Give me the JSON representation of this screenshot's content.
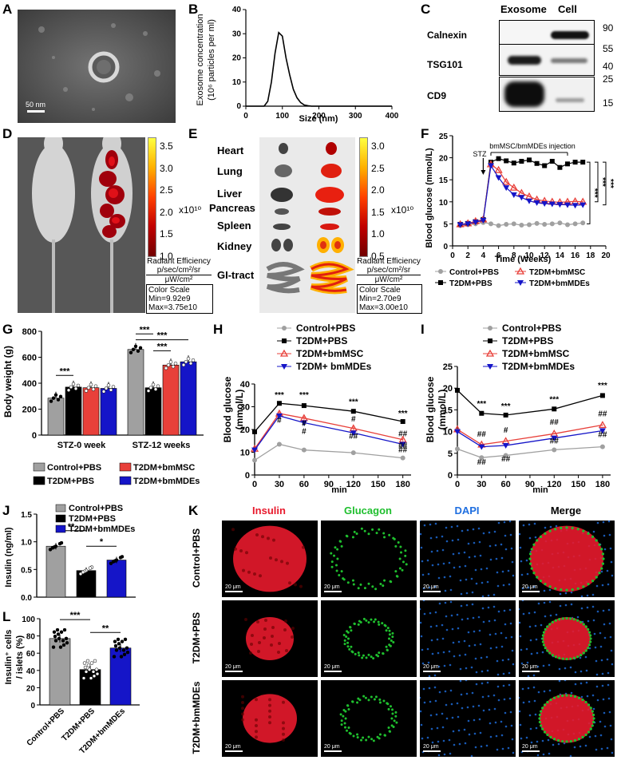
{
  "panel_letters": [
    "A",
    "B",
    "C",
    "D",
    "E",
    "F",
    "G",
    "H",
    "I",
    "J",
    "K",
    "L"
  ],
  "A": {
    "scalebar": "50 nm"
  },
  "B": {
    "xlabel": "Size (nm)",
    "ylabel_line1": "Exosome concentration",
    "ylabel_line2": "(10⁶ particles per ml)"
  },
  "C": {
    "col_exosome": "Exosome",
    "col_cell": "Cell",
    "rows": [
      "Calnexin",
      "TSG101",
      "CD9"
    ],
    "mw": [
      "90",
      "55",
      "40",
      "25",
      "15"
    ]
  },
  "D": {
    "colorbar_ticks": [
      "3.5",
      "3.0",
      "2.5",
      "2.0",
      "1.5",
      "1.0"
    ],
    "exponent": "x10¹⁰",
    "unit_title": "Radiant Efficiency",
    "unit_line1": "p/sec/cm²/sr",
    "unit_line2": "μW/cm²",
    "scale_title": "Color Scale",
    "min": "Min=9.92e9",
    "max": "Max=3.75e10"
  },
  "E": {
    "organs": [
      "Heart",
      "Lung",
      "Liver",
      "Pancreas",
      "Spleen",
      "Kidney",
      "GI-tract"
    ],
    "colorbar_ticks": [
      "3.0",
      "2.5",
      "2.0",
      "1.5",
      "1.0",
      "0.5"
    ],
    "exponent": "x10¹⁰",
    "unit_title": "Radiant Efficiency",
    "unit_line1": "p/sec/cm²/sr",
    "unit_line2": "μW/cm²",
    "scale_title": "Color Scale",
    "min": "Min=2.70e9",
    "max": "Max=3.00e10"
  },
  "F": {
    "ylabel": "Blood glucose (mmol/L)",
    "xlabel": "Time (Weeks)",
    "stz": "STZ",
    "injection": "bmMSC/bmMDEs injection",
    "sig": [
      "***",
      "***",
      "***"
    ],
    "legend": [
      "Control+PBS",
      "T2DM+bmMSC",
      "T2DM+PBS",
      "T2DM+bmMDEs"
    ]
  },
  "G": {
    "ylabel": "Body weight (g)",
    "groups": [
      "STZ-0 week",
      "STZ-12 weeks"
    ],
    "sig": [
      "***",
      "***",
      "***",
      "***"
    ],
    "legend": [
      "Control+PBS",
      "T2DM+bmMSC",
      "T2DM+PBS",
      "T2DM+bmMDEs"
    ]
  },
  "H": {
    "ylabel_line1": "Blood glucose",
    "ylabel_line2": "(mmol/L)",
    "xlabel": "min",
    "legend": [
      "Control+PBS",
      "T2DM+PBS",
      "T2DM+bmMSC",
      "T2DM+ bmMDEs"
    ]
  },
  "I": {
    "ylabel_line1": "Blood glucose",
    "ylabel_line2": "(mmol/L)",
    "xlabel": "min",
    "legend": [
      "Control+PBS",
      "T2DM+PBS",
      "T2DM+bmMSC",
      "T2DM+bmMDEs"
    ]
  },
  "J": {
    "ylabel": "Insulin (ng/ml)",
    "sig": [
      "**",
      "*"
    ],
    "legend": [
      "Control+PBS",
      "T2DM+PBS",
      "T2DM+bmMDEs"
    ]
  },
  "K": {
    "columns": [
      "Insulin",
      "Glucagon",
      "DAPI",
      "Merge"
    ],
    "rows": [
      "Control+PBS",
      "T2DM+PBS",
      "T2DM+bmMDEs"
    ],
    "scalebar": "20 μm",
    "colors": {
      "insulin": "#e8192c",
      "glucagon": "#1fbf2e",
      "dapi": "#1f6fe0"
    }
  },
  "L": {
    "ylabel_line1": "Insulin⁺ cells",
    "ylabel_line2": "/ islets (%)",
    "categories": [
      "Control+PBS",
      "T2DM+PBS",
      "T2DM+bmMDEs"
    ],
    "sig": [
      "***",
      "**"
    ]
  },
  "colors": {
    "control": "#a0a0a0",
    "t2dm": "#000000",
    "bmmsc": "#e8403a",
    "bmmdes": "#1515c8"
  },
  "chart_data": [
    {
      "panel": "B",
      "type": "line",
      "xlabel": "Size (nm)",
      "ylabel": "Exosome concentration (10⁶ particles per ml)",
      "xlim": [
        0,
        400
      ],
      "ylim": [
        0,
        40
      ],
      "xticks": [
        0,
        100,
        200,
        300,
        400
      ],
      "yticks": [
        0,
        10,
        20,
        30,
        40
      ],
      "x": [
        0,
        50,
        60,
        70,
        80,
        90,
        100,
        110,
        120,
        130,
        140,
        150,
        160,
        170,
        180,
        200,
        250,
        300,
        400
      ],
      "y": [
        0,
        0,
        2,
        10,
        22,
        30.5,
        29,
        20,
        13,
        7,
        3.5,
        1.5,
        0.5,
        0.2,
        0,
        0,
        0,
        0,
        0
      ]
    },
    {
      "panel": "F",
      "type": "line",
      "xlabel": "Time (Weeks)",
      "ylabel": "Blood glucose (mmol/L)",
      "xlim": [
        0,
        20
      ],
      "ylim": [
        0,
        25
      ],
      "xticks": [
        0,
        2,
        4,
        6,
        8,
        10,
        12,
        14,
        16,
        18,
        20
      ],
      "yticks": [
        0,
        5,
        10,
        15,
        20,
        25
      ],
      "x": [
        1,
        2,
        3,
        4,
        5,
        6,
        7,
        8,
        9,
        10,
        11,
        12,
        13,
        14,
        15,
        16,
        17
      ],
      "series": [
        {
          "name": "Control+PBS",
          "values": [
            4.6,
            4.8,
            5.0,
            5.3,
            5.0,
            4.6,
            4.9,
            5.0,
            4.7,
            4.8,
            5.1,
            4.9,
            5.0,
            5.2,
            4.8,
            5.0,
            5.2
          ]
        },
        {
          "name": "T2DM+PBS",
          "values": [
            4.9,
            5.1,
            5.5,
            6.0,
            19.0,
            19.8,
            19.3,
            18.8,
            19.2,
            19.5,
            18.7,
            18.2,
            19.2,
            17.8,
            18.6,
            19.0,
            19.0
          ]
        },
        {
          "name": "T2DM+bmMSC",
          "values": [
            4.9,
            5.1,
            5.6,
            6.0,
            18.5,
            17.2,
            14.5,
            13.2,
            12.0,
            11.2,
            10.5,
            10.2,
            10.0,
            9.9,
            10.0,
            10.1,
            10.0
          ]
        },
        {
          "name": "T2DM+bmMDEs",
          "values": [
            4.8,
            5.0,
            5.4,
            5.8,
            18.2,
            15.5,
            13.2,
            11.6,
            11.0,
            10.2,
            9.8,
            9.6,
            9.5,
            9.4,
            9.3,
            9.2,
            9.3
          ]
        }
      ]
    },
    {
      "panel": "G",
      "type": "bar",
      "ylabel": "Body weight (g)",
      "ylim": [
        0,
        800
      ],
      "yticks": [
        0,
        200,
        400,
        600,
        800
      ],
      "categories": [
        "STZ-0 week",
        "STZ-12 weeks"
      ],
      "series": [
        {
          "name": "Control+PBS",
          "values": [
            285,
            660
          ]
        },
        {
          "name": "T2DM+PBS",
          "values": [
            370,
            365
          ]
        },
        {
          "name": "T2DM+bmMSC",
          "values": [
            365,
            540
          ]
        },
        {
          "name": "T2DM+bmMDEs",
          "values": [
            360,
            565
          ]
        }
      ]
    },
    {
      "panel": "H",
      "type": "line",
      "xlabel": "min",
      "ylabel": "Blood glucose (mmol/L)",
      "xlim": [
        0,
        190
      ],
      "ylim": [
        0,
        40
      ],
      "xticks": [
        0,
        30,
        60,
        90,
        120,
        150,
        180
      ],
      "yticks": [
        0,
        10,
        20,
        30,
        40
      ],
      "x": [
        0,
        30,
        60,
        120,
        180
      ],
      "series": [
        {
          "name": "Control+PBS",
          "values": [
            6.5,
            13.5,
            11.0,
            9.8,
            7.5
          ]
        },
        {
          "name": "T2DM+PBS",
          "values": [
            19.0,
            31.5,
            30.5,
            28.0,
            23.5
          ]
        },
        {
          "name": "T2DM+bmMSC",
          "values": [
            11.5,
            27.0,
            25.0,
            20.5,
            15.5
          ]
        },
        {
          "name": "T2DM+ bmMDEs",
          "values": [
            11.0,
            26.0,
            23.0,
            18.5,
            13.5
          ]
        }
      ],
      "annotations": [
        "***",
        "***",
        "***",
        "***",
        "#",
        "#",
        "#",
        "##",
        "##",
        "#",
        "##",
        "##"
      ]
    },
    {
      "panel": "I",
      "type": "line",
      "xlabel": "min",
      "ylabel": "Blood glucose (mmol/L)",
      "xlim": [
        0,
        190
      ],
      "ylim": [
        0,
        25
      ],
      "xticks": [
        0,
        30,
        60,
        90,
        120,
        150,
        180
      ],
      "yticks": [
        0,
        5,
        10,
        15,
        20,
        25
      ],
      "x": [
        0,
        30,
        60,
        120,
        180
      ],
      "series": [
        {
          "name": "Control+PBS",
          "values": [
            6.0,
            4.0,
            4.5,
            5.8,
            6.5
          ]
        },
        {
          "name": "T2DM+PBS",
          "values": [
            19.5,
            14.2,
            13.8,
            15.2,
            18.3
          ]
        },
        {
          "name": "T2DM+bmMSC",
          "values": [
            10.5,
            7.0,
            7.8,
            9.5,
            11.5
          ]
        },
        {
          "name": "T2DM+bmMDEs",
          "values": [
            10.0,
            6.5,
            6.8,
            8.5,
            10.2
          ]
        }
      ],
      "annotations": [
        "***",
        "***",
        "***",
        "***",
        "##",
        "##",
        "#",
        "##",
        "##",
        "##",
        "##",
        "##"
      ]
    },
    {
      "panel": "J",
      "type": "bar",
      "ylabel": "Insulin (ng/ml)",
      "ylim": [
        0,
        1.5
      ],
      "yticks": [
        0.0,
        0.5,
        1.0,
        1.5
      ],
      "categories": [
        "Control+PBS",
        "T2DM+PBS",
        "T2DM+bmMDEs"
      ],
      "values": [
        0.92,
        0.48,
        0.67
      ]
    },
    {
      "panel": "L",
      "type": "bar",
      "ylabel": "Insulin⁺ cells / islets (%)",
      "ylim": [
        0,
        100
      ],
      "yticks": [
        0,
        20,
        40,
        60,
        80,
        100
      ],
      "categories": [
        "Control+PBS",
        "T2DM+PBS",
        "T2DM+bmMDEs"
      ],
      "values": [
        77,
        41,
        66
      ]
    }
  ]
}
